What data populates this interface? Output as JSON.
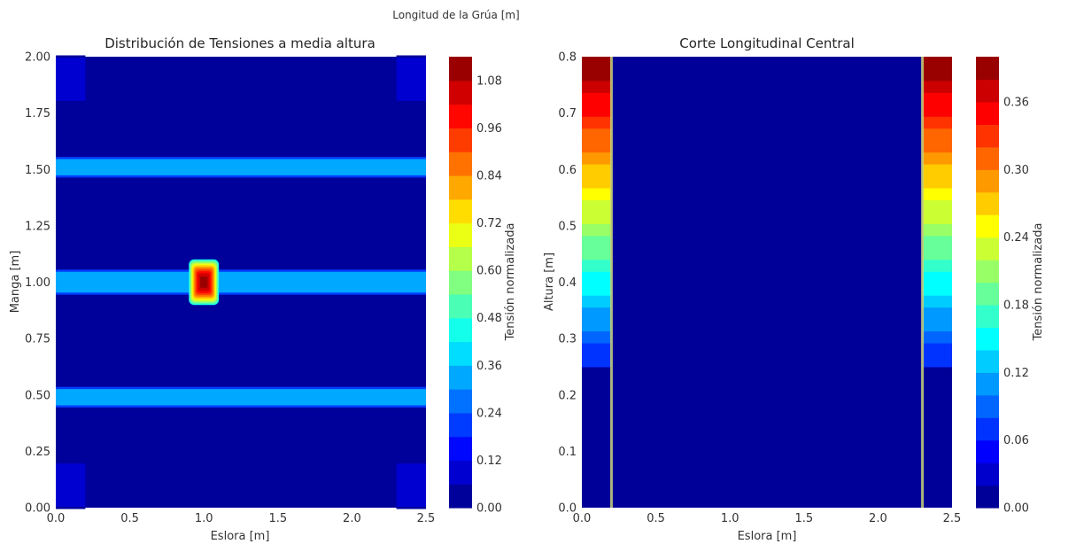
{
  "figure": {
    "suptitle": "Longitud de la Grúa [m]"
  },
  "chart_data": [
    {
      "type": "heatmap",
      "title": "Distribución de Tensiones a media altura",
      "xlabel": "Eslora [m]",
      "ylabel": "Manga [m]",
      "xlim": [
        0,
        2.5
      ],
      "ylim": [
        0,
        2.0
      ],
      "xticks": [
        "0.0",
        "0.5",
        "1.0",
        "1.5",
        "2.0",
        "2.5"
      ],
      "yticks": [
        "0.00",
        "0.25",
        "0.50",
        "0.75",
        "1.00",
        "1.25",
        "1.50",
        "1.75",
        "2.00"
      ],
      "colorbar": {
        "label": "Tensión normalizada",
        "range": [
          0,
          1.14
        ],
        "levels": 19,
        "ticks": [
          "0.00",
          "0.12",
          "0.24",
          "0.36",
          "0.48",
          "0.60",
          "0.72",
          "0.84",
          "0.96",
          "1.08"
        ]
      },
      "colormap": "jet",
      "background_value": 0.02,
      "regions": [
        {
          "x": [
            0.0,
            2.5
          ],
          "y": [
            1.47,
            1.55
          ],
          "value": 0.3
        },
        {
          "x": [
            0.0,
            2.5
          ],
          "y": [
            0.95,
            1.05
          ],
          "value": 0.3
        },
        {
          "x": [
            0.0,
            2.5
          ],
          "y": [
            0.45,
            0.53
          ],
          "value": 0.3
        },
        {
          "x": [
            0.0,
            0.2
          ],
          "y": [
            1.8,
            2.0
          ],
          "value": 0.09
        },
        {
          "x": [
            2.3,
            2.5
          ],
          "y": [
            1.8,
            2.0
          ],
          "value": 0.09
        },
        {
          "x": [
            0.0,
            0.2
          ],
          "y": [
            0.0,
            0.2
          ],
          "value": 0.09
        },
        {
          "x": [
            2.3,
            2.5
          ],
          "y": [
            0.0,
            0.2
          ],
          "value": 0.09
        }
      ],
      "hotspot": {
        "x": 1.0,
        "y": 1.0,
        "peak": 1.14,
        "halfwidth_x": 0.1,
        "halfwidth_y": 0.1
      }
    },
    {
      "type": "heatmap",
      "title": "Corte Longitudinal Central",
      "xlabel": "Eslora [m]",
      "ylabel": "Altura [m]",
      "xlim": [
        0,
        2.5
      ],
      "ylim": [
        0,
        0.8
      ],
      "xticks": [
        "0.0",
        "0.5",
        "1.0",
        "1.5",
        "2.0",
        "2.5"
      ],
      "yticks": [
        "0.0",
        "0.1",
        "0.2",
        "0.3",
        "0.4",
        "0.5",
        "0.6",
        "0.7",
        "0.8"
      ],
      "colorbar": {
        "label": "Tensión normalizada",
        "range": [
          0,
          0.4
        ],
        "levels": 20,
        "ticks": [
          "0.00",
          "0.06",
          "0.12",
          "0.18",
          "0.24",
          "0.30",
          "0.36"
        ]
      },
      "colormap": "jet",
      "background_value": 0.01,
      "walls": {
        "x_ranges": [
          [
            0.0,
            0.2
          ],
          [
            2.3,
            2.5
          ]
        ],
        "y_start": 0.25,
        "y_end": 0.8,
        "value_at_bottom": 0.06,
        "value_at_top": 0.4
      }
    }
  ]
}
